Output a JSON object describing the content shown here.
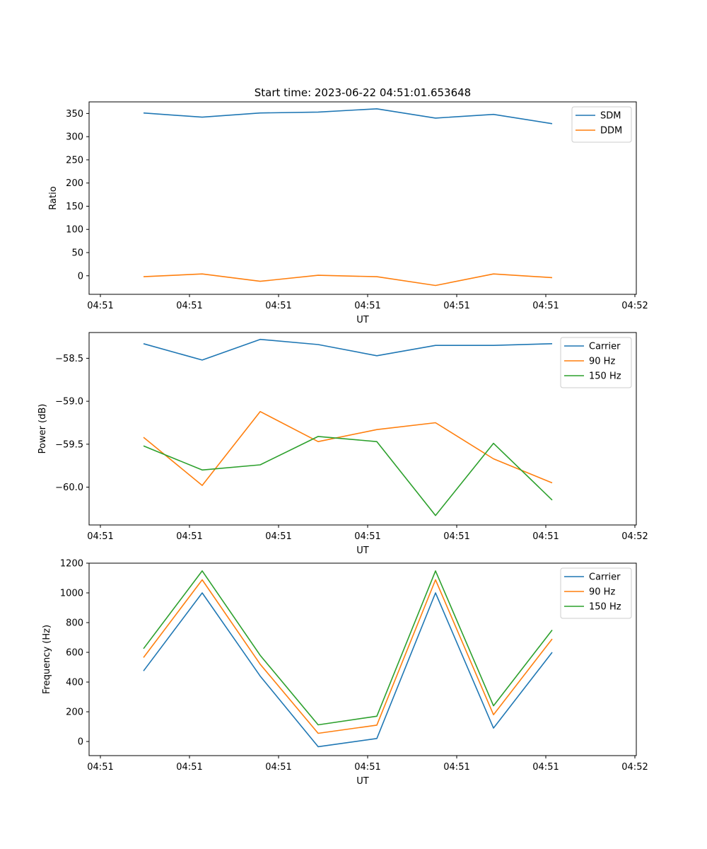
{
  "chart_data": [
    {
      "type": "line",
      "title": "Start time: 2023-06-22 04:51:01.653648",
      "xlabel": "UT",
      "ylabel": "Ratio",
      "x_tick_labels": [
        "04:51",
        "04:51",
        "04:51",
        "04:51",
        "04:51",
        "04:51",
        "04:52"
      ],
      "y_ticks": [
        0,
        50,
        100,
        150,
        200,
        250,
        300,
        350
      ],
      "ylim": [
        -40,
        375
      ],
      "legend_position": "top-right",
      "grid": false,
      "series": [
        {
          "name": "SDM",
          "color": "#1f77b4",
          "values": [
            351,
            342,
            351,
            353,
            360,
            340,
            348,
            328
          ]
        },
        {
          "name": "DDM",
          "color": "#ff7f0e",
          "values": [
            -2,
            4,
            -12,
            1,
            -2,
            -21,
            4,
            -4
          ]
        }
      ]
    },
    {
      "type": "line",
      "title": "",
      "xlabel": "UT",
      "ylabel": "Power (dB)",
      "x_tick_labels": [
        "04:51",
        "04:51",
        "04:51",
        "04:51",
        "04:51",
        "04:51",
        "04:52"
      ],
      "y_ticks": [
        -60.0,
        -59.5,
        -59.0,
        -58.5
      ],
      "y_tick_labels": [
        "−60.0",
        "−59.5",
        "−59.0",
        "−58.5"
      ],
      "ylim": [
        -60.44,
        -58.2
      ],
      "legend_position": "top-right",
      "grid": false,
      "series": [
        {
          "name": "Carrier",
          "color": "#1f77b4",
          "values": [
            -58.33,
            -58.52,
            -58.28,
            -58.34,
            -58.47,
            -58.35,
            -58.35,
            -58.33
          ]
        },
        {
          "name": "90 Hz",
          "color": "#ff7f0e",
          "values": [
            -59.42,
            -59.98,
            -59.12,
            -59.47,
            -59.33,
            -59.25,
            -59.67,
            -59.95
          ]
        },
        {
          "name": "150 Hz",
          "color": "#2ca02c",
          "values": [
            -59.52,
            -59.8,
            -59.74,
            -59.41,
            -59.47,
            -60.33,
            -59.49,
            -60.15
          ]
        }
      ]
    },
    {
      "type": "line",
      "title": "",
      "xlabel": "UT",
      "ylabel": "Frequency (Hz)",
      "x_tick_labels": [
        "04:51",
        "04:51",
        "04:51",
        "04:51",
        "04:51",
        "04:51",
        "04:52"
      ],
      "y_ticks": [
        0,
        200,
        400,
        600,
        800,
        1000,
        1200
      ],
      "ylim": [
        -95,
        1200
      ],
      "legend_position": "top-right",
      "grid": false,
      "series": [
        {
          "name": "Carrier",
          "color": "#1f77b4",
          "values": [
            475,
            1000,
            440,
            -35,
            20,
            1000,
            90,
            600
          ]
        },
        {
          "name": "90 Hz",
          "color": "#ff7f0e",
          "values": [
            565,
            1088,
            520,
            55,
            110,
            1088,
            180,
            690
          ]
        },
        {
          "name": "150 Hz",
          "color": "#2ca02c",
          "values": [
            625,
            1148,
            580,
            112,
            170,
            1148,
            240,
            750
          ]
        }
      ]
    }
  ]
}
